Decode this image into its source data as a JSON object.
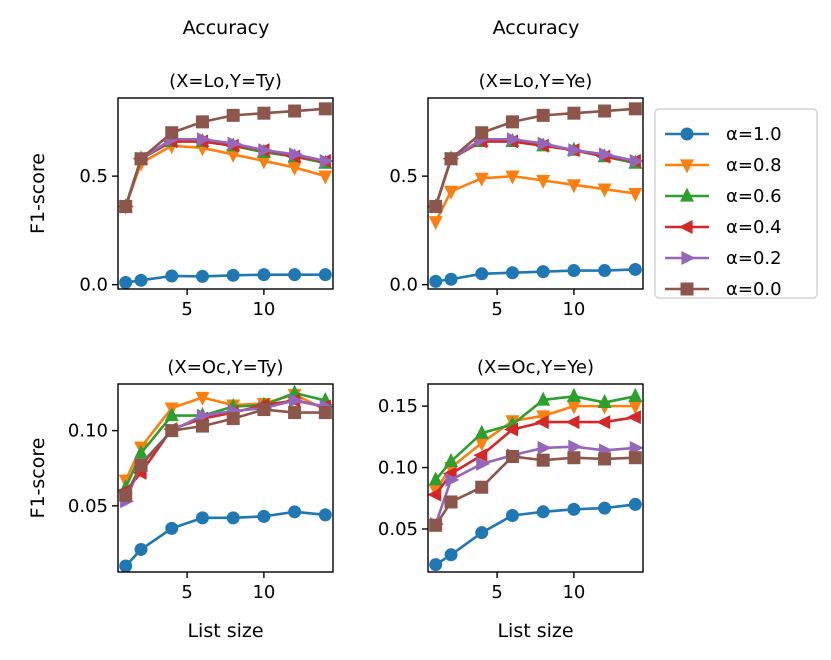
{
  "supertitles": [
    "Accuracy",
    "Accuracy"
  ],
  "colors": {
    "a10": "#1f77b4",
    "a08": "#ff7f0e",
    "a06": "#2ca02c",
    "a04": "#d62728",
    "a02": "#9467bd",
    "a00": "#8c564b",
    "axis": "#000000"
  },
  "chart_data": [
    {
      "type": "line",
      "title": "(X=Lo,Y=Ty)",
      "xlabel": "",
      "ylabel": "F1-score",
      "xlim": [
        0.5,
        14.5
      ],
      "ylim": [
        -0.02,
        0.86
      ],
      "xticks": [
        5,
        10
      ],
      "xtick_labels": [
        "5",
        "10"
      ],
      "yticks": [
        0.0,
        0.5
      ],
      "ytick_labels": [
        "0.0",
        "0.5"
      ],
      "x": [
        1,
        2,
        4,
        6,
        8,
        10,
        12,
        14
      ],
      "series": [
        {
          "name": "α=1.0",
          "key": "a10",
          "marker": "circle",
          "values": [
            0.01,
            0.02,
            0.04,
            0.038,
            0.043,
            0.046,
            0.046,
            0.046
          ]
        },
        {
          "name": "α=0.8",
          "key": "a08",
          "marker": "tri-down",
          "values": [
            0.36,
            0.56,
            0.64,
            0.63,
            0.6,
            0.57,
            0.54,
            0.5
          ]
        },
        {
          "name": "α=0.6",
          "key": "a06",
          "marker": "tri-up",
          "values": [
            0.36,
            0.58,
            0.66,
            0.66,
            0.64,
            0.61,
            0.59,
            0.56
          ]
        },
        {
          "name": "α=0.4",
          "key": "a04",
          "marker": "tri-left",
          "values": [
            0.36,
            0.58,
            0.66,
            0.66,
            0.64,
            0.62,
            0.59,
            0.57
          ]
        },
        {
          "name": "α=0.2",
          "key": "a02",
          "marker": "tri-right",
          "values": [
            0.36,
            0.58,
            0.67,
            0.67,
            0.65,
            0.62,
            0.6,
            0.57
          ]
        },
        {
          "name": "α=0.0",
          "key": "a00",
          "marker": "square",
          "values": [
            0.36,
            0.58,
            0.7,
            0.75,
            0.78,
            0.79,
            0.8,
            0.81
          ]
        }
      ]
    },
    {
      "type": "line",
      "title": "(X=Lo,Y=Ye)",
      "xlabel": "",
      "ylabel": "",
      "xlim": [
        0.5,
        14.5
      ],
      "ylim": [
        -0.02,
        0.86
      ],
      "xticks": [
        5,
        10
      ],
      "xtick_labels": [
        "5",
        "10"
      ],
      "yticks": [
        0.0,
        0.5
      ],
      "ytick_labels": [
        "0.0",
        "0.5"
      ],
      "x": [
        1,
        2,
        4,
        6,
        8,
        10,
        12,
        14
      ],
      "series": [
        {
          "name": "α=1.0",
          "key": "a10",
          "marker": "circle",
          "values": [
            0.015,
            0.025,
            0.05,
            0.055,
            0.06,
            0.065,
            0.065,
            0.07
          ]
        },
        {
          "name": "α=0.8",
          "key": "a08",
          "marker": "tri-down",
          "values": [
            0.29,
            0.43,
            0.49,
            0.5,
            0.48,
            0.46,
            0.44,
            0.42
          ]
        },
        {
          "name": "α=0.6",
          "key": "a06",
          "marker": "tri-up",
          "values": [
            0.36,
            0.58,
            0.66,
            0.66,
            0.64,
            0.62,
            0.59,
            0.56
          ]
        },
        {
          "name": "α=0.4",
          "key": "a04",
          "marker": "tri-left",
          "values": [
            0.36,
            0.58,
            0.66,
            0.66,
            0.64,
            0.62,
            0.59,
            0.57
          ]
        },
        {
          "name": "α=0.2",
          "key": "a02",
          "marker": "tri-right",
          "values": [
            0.36,
            0.58,
            0.67,
            0.67,
            0.65,
            0.62,
            0.6,
            0.57
          ]
        },
        {
          "name": "α=0.0",
          "key": "a00",
          "marker": "square",
          "values": [
            0.36,
            0.58,
            0.7,
            0.75,
            0.78,
            0.79,
            0.8,
            0.81
          ]
        }
      ]
    },
    {
      "type": "line",
      "title": "(X=Oc,Y=Ty)",
      "xlabel": "List size",
      "ylabel": "F1-score",
      "xlim": [
        0.5,
        14.5
      ],
      "ylim": [
        0.006,
        0.131
      ],
      "xticks": [
        5,
        10
      ],
      "xtick_labels": [
        "5",
        "10"
      ],
      "yticks": [
        0.05,
        0.1
      ],
      "ytick_labels": [
        "0.05",
        "0.10"
      ],
      "x": [
        1,
        2,
        4,
        6,
        8,
        10,
        12,
        14
      ],
      "series": [
        {
          "name": "α=1.0",
          "key": "a10",
          "marker": "circle",
          "values": [
            0.01,
            0.021,
            0.035,
            0.042,
            0.042,
            0.043,
            0.046,
            0.044
          ]
        },
        {
          "name": "α=0.8",
          "key": "a08",
          "marker": "tri-down",
          "values": [
            0.067,
            0.089,
            0.115,
            0.122,
            0.117,
            0.118,
            0.124,
            0.114
          ]
        },
        {
          "name": "α=0.6",
          "key": "a06",
          "marker": "tri-up",
          "values": [
            0.062,
            0.085,
            0.11,
            0.11,
            0.116,
            0.117,
            0.125,
            0.12
          ]
        },
        {
          "name": "α=0.4",
          "key": "a04",
          "marker": "tri-left",
          "values": [
            0.06,
            0.072,
            0.101,
            0.108,
            0.112,
            0.117,
            0.12,
            0.116
          ]
        },
        {
          "name": "α=0.2",
          "key": "a02",
          "marker": "tri-right",
          "values": [
            0.053,
            0.078,
            0.1,
            0.11,
            0.113,
            0.115,
            0.12,
            0.116
          ]
        },
        {
          "name": "α=0.0",
          "key": "a00",
          "marker": "square",
          "values": [
            0.057,
            0.077,
            0.1,
            0.103,
            0.108,
            0.114,
            0.112,
            0.112
          ]
        }
      ]
    },
    {
      "type": "line",
      "title": "(X=Oc,Y=Ye)",
      "xlabel": "List size",
      "ylabel": "",
      "xlim": [
        0.5,
        14.5
      ],
      "ylim": [
        0.015,
        0.168
      ],
      "xticks": [
        5,
        10
      ],
      "xtick_labels": [
        "5",
        "10"
      ],
      "yticks": [
        0.05,
        0.1,
        0.15
      ],
      "ytick_labels": [
        "0.05",
        "0.10",
        "0.15"
      ],
      "x": [
        1,
        2,
        4,
        6,
        8,
        10,
        12,
        14
      ],
      "series": [
        {
          "name": "α=1.0",
          "key": "a10",
          "marker": "circle",
          "values": [
            0.021,
            0.029,
            0.047,
            0.061,
            0.064,
            0.066,
            0.067,
            0.07
          ]
        },
        {
          "name": "α=0.8",
          "key": "a08",
          "marker": "tri-down",
          "values": [
            0.082,
            0.1,
            0.12,
            0.138,
            0.142,
            0.15,
            0.15,
            0.15
          ]
        },
        {
          "name": "α=0.6",
          "key": "a06",
          "marker": "tri-up",
          "values": [
            0.09,
            0.105,
            0.128,
            0.135,
            0.155,
            0.158,
            0.153,
            0.158
          ]
        },
        {
          "name": "α=0.4",
          "key": "a04",
          "marker": "tri-left",
          "values": [
            0.078,
            0.095,
            0.11,
            0.131,
            0.137,
            0.137,
            0.137,
            0.141
          ]
        },
        {
          "name": "α=0.2",
          "key": "a02",
          "marker": "tri-right",
          "values": [
            0.054,
            0.09,
            0.103,
            0.11,
            0.116,
            0.117,
            0.114,
            0.116
          ]
        },
        {
          "name": "α=0.0",
          "key": "a00",
          "marker": "square",
          "values": [
            0.053,
            0.072,
            0.084,
            0.109,
            0.106,
            0.108,
            0.107,
            0.108
          ]
        }
      ]
    }
  ],
  "legend": {
    "placement": "right",
    "entries": [
      {
        "label": "α=1.0",
        "key": "a10",
        "marker": "circle"
      },
      {
        "label": "α=0.8",
        "key": "a08",
        "marker": "tri-down"
      },
      {
        "label": "α=0.6",
        "key": "a06",
        "marker": "tri-up"
      },
      {
        "label": "α=0.4",
        "key": "a04",
        "marker": "tri-left"
      },
      {
        "label": "α=0.2",
        "key": "a02",
        "marker": "tri-right"
      },
      {
        "label": "α=0.0",
        "key": "a00",
        "marker": "square"
      }
    ]
  }
}
